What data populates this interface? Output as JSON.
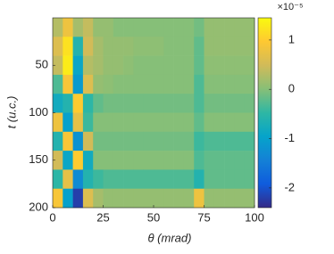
{
  "chart_data": {
    "type": "heatmap",
    "xlabel": "θ (mrad)",
    "ylabel": "t (u.c.)",
    "x": [
      2.5,
      7.5,
      12.5,
      17.5,
      22.5,
      27.5,
      32.5,
      37.5,
      42.5,
      47.5,
      52.5,
      57.5,
      62.5,
      67.5,
      72.5,
      77.5,
      82.5,
      87.5,
      92.5,
      97.5
    ],
    "y": [
      10,
      30,
      50,
      70,
      90,
      110,
      130,
      150,
      170,
      190
    ],
    "z": [
      [
        0.3,
        0.8,
        0.2,
        0.4,
        0.1,
        0.1,
        0,
        0,
        0,
        0,
        0,
        0,
        0,
        0,
        -0.1,
        0.1,
        0.1,
        0.1,
        0.1,
        0.1
      ],
      [
        0.6,
        1.2,
        -0.6,
        0.5,
        0.2,
        0.1,
        0.1,
        0.1,
        0.05,
        0.05,
        0.05,
        0,
        0,
        0,
        -0.2,
        0.1,
        0.1,
        0.1,
        0.1,
        0.1
      ],
      [
        0.4,
        1.3,
        -0.9,
        0.3,
        0.2,
        0.1,
        0.1,
        0.05,
        0,
        0,
        0,
        0,
        0,
        0,
        -0.2,
        0.05,
        0.05,
        0.05,
        0.05,
        0.05
      ],
      [
        -0.3,
        0.9,
        -1.1,
        0.6,
        0.1,
        0.05,
        0,
        0,
        0,
        0,
        0,
        0,
        0,
        0,
        -0.3,
        0,
        0,
        0,
        0,
        0
      ],
      [
        -0.8,
        -0.6,
        1.0,
        -0.5,
        -0.2,
        -0.1,
        -0.1,
        -0.1,
        -0.1,
        -0.1,
        -0.1,
        -0.1,
        -0.1,
        -0.1,
        -0.3,
        -0.1,
        -0.1,
        -0.1,
        -0.1,
        -0.1
      ],
      [
        0.8,
        -1.0,
        0.7,
        -0.4,
        0,
        0,
        0,
        0,
        0,
        0,
        0,
        0,
        0,
        0,
        -0.2,
        0,
        0,
        0,
        0,
        0
      ],
      [
        -0.6,
        0.9,
        -1.2,
        0.5,
        -0.1,
        -0.1,
        -0.1,
        -0.1,
        -0.1,
        -0.1,
        -0.1,
        -0.1,
        -0.1,
        -0.1,
        -0.4,
        -0.3,
        -0.3,
        -0.3,
        -0.3,
        -0.3
      ],
      [
        0.5,
        -0.9,
        1.0,
        -0.8,
        0,
        0,
        0,
        0,
        0,
        0,
        0,
        0,
        0,
        0,
        -0.3,
        -0.2,
        -0.2,
        -0.2,
        -0.2,
        -0.2
      ],
      [
        -0.5,
        0.7,
        -1.3,
        -0.6,
        -0.4,
        -0.3,
        -0.3,
        -0.3,
        -0.3,
        -0.3,
        -0.3,
        -0.3,
        -0.3,
        -0.3,
        -0.6,
        -0.2,
        -0.2,
        -0.2,
        -0.2,
        -0.2
      ],
      [
        0.9,
        -1.0,
        -2.2,
        0.6,
        0.2,
        0.1,
        0.1,
        0.1,
        0.1,
        0.1,
        0.1,
        0.1,
        0.1,
        0.1,
        0.8,
        0.1,
        0.1,
        0.1,
        0.1,
        0.1
      ]
    ],
    "xlim": [
      0,
      100
    ],
    "xticks": [
      0,
      25,
      50,
      75,
      100
    ],
    "ylim": [
      0,
      200
    ],
    "yticks": [
      50,
      100,
      150,
      200
    ],
    "y_reversed": true,
    "colormap": "parula",
    "clim": [
      -2.4,
      1.45
    ],
    "cticks": [
      -2,
      -1,
      0,
      1
    ],
    "colorbar_exponent": "×10⁻⁵"
  }
}
